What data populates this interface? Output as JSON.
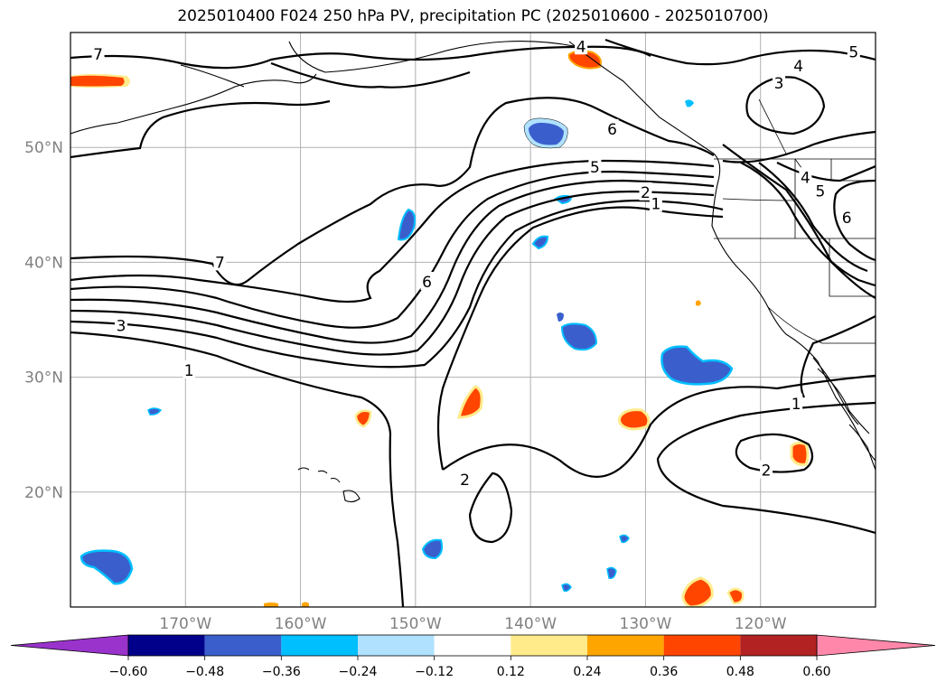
{
  "title": "2025010400 F024 250 hPa PV, precipitation PC (2025010600 - 2025010700)",
  "latitude_labels": [
    {
      "label": "50°N",
      "lat": 50
    },
    {
      "label": "40°N",
      "lat": 40
    },
    {
      "label": "30°N",
      "lat": 30
    },
    {
      "label": "20°N",
      "lat": 20
    }
  ],
  "longitude_labels": [
    {
      "label": "170°W",
      "lon": -170
    },
    {
      "label": "160°W",
      "lon": -160
    },
    {
      "label": "150°W",
      "lon": -150
    },
    {
      "label": "140°W",
      "lon": -140
    },
    {
      "label": "130°W",
      "lon": -130
    },
    {
      "label": "120°W",
      "lon": -120
    }
  ],
  "map_extent": {
    "lon_min": -180,
    "lon_max": -110,
    "lat_min": 10,
    "lat_max": 60
  },
  "contour_labels": [
    {
      "text": "7",
      "lon": -177.6,
      "lat": 58.1
    },
    {
      "text": "7",
      "lon": -167,
      "lat": 40
    },
    {
      "text": "6",
      "lon": -149,
      "lat": 38.3
    },
    {
      "text": "3",
      "lon": -175.6,
      "lat": 34.5
    },
    {
      "text": "1",
      "lon": -169.7,
      "lat": 30.6
    },
    {
      "text": "4",
      "lon": -135.6,
      "lat": 58.8
    },
    {
      "text": "6",
      "lon": -132.9,
      "lat": 51.6
    },
    {
      "text": "5",
      "lon": -134.4,
      "lat": 48.3
    },
    {
      "text": "2",
      "lon": -130,
      "lat": 46.1
    },
    {
      "text": "1",
      "lon": -129.1,
      "lat": 45.1
    },
    {
      "text": "4",
      "lon": -116.7,
      "lat": 57.1
    },
    {
      "text": "3",
      "lon": -118.4,
      "lat": 55.6
    },
    {
      "text": "5",
      "lon": -111.9,
      "lat": 58.3
    },
    {
      "text": "4",
      "lon": -116.1,
      "lat": 47.4
    },
    {
      "text": "5",
      "lon": -114.8,
      "lat": 46.2
    },
    {
      "text": "6",
      "lon": -112.5,
      "lat": 43.9
    },
    {
      "text": "1",
      "lon": -116.9,
      "lat": 27.7
    },
    {
      "text": "2",
      "lon": -119.5,
      "lat": 21.9
    },
    {
      "text": "2",
      "lon": -145.7,
      "lat": 21.1
    }
  ],
  "colorbar": {
    "ticks": [
      "−0.60",
      "−0.48",
      "−0.36",
      "−0.24",
      "−0.12",
      "0.12",
      "0.24",
      "0.36",
      "0.48",
      "0.60"
    ],
    "levels": [
      -0.6,
      -0.48,
      -0.36,
      -0.24,
      -0.12,
      0.12,
      0.24,
      0.36,
      0.48,
      0.6
    ],
    "colors": [
      "#9933cc",
      "#00008b",
      "#3a5fcd",
      "#00bfff",
      "#b0e2ff",
      "#ffffff",
      "#ffeb8a",
      "#ffa500",
      "#ff4500",
      "#b22222",
      "#ff88aa"
    ],
    "extend": "both"
  },
  "precip_colors": {
    "neg_strong": "#3a5fcd",
    "neg_mid": "#00bfff",
    "neg_weak": "#b0e2ff",
    "pos_weak": "#ffeb8a",
    "pos_mid": "#ffa500",
    "pos_strong": "#ff4500"
  }
}
